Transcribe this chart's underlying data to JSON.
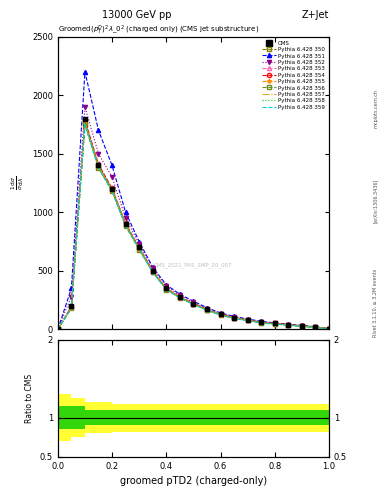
{
  "title_top": "13000 GeV pp",
  "title_right": "Z+Jet",
  "xlabel": "groomed pTD2 (charged-only)",
  "watermark": "CMS_2021_PAS_SMP_20_007",
  "right_label": "Rivet 3.1.10, ≥ 3.2M events",
  "arxiv_label": "[arXiv:1306.3436]",
  "mcplots_label": "mcplots.cern.ch",
  "xlim": [
    0.0,
    1.0
  ],
  "ylim_main": [
    0,
    2500
  ],
  "ylim_ratio": [
    0.5,
    2.0
  ],
  "x_data": [
    0.0,
    0.05,
    0.1,
    0.15,
    0.2,
    0.25,
    0.3,
    0.35,
    0.4,
    0.45,
    0.5,
    0.55,
    0.6,
    0.65,
    0.7,
    0.75,
    0.8,
    0.85,
    0.9,
    0.95,
    1.0
  ],
  "cms_data": [
    0,
    200,
    1800,
    1400,
    1200,
    900,
    700,
    500,
    350,
    280,
    220,
    170,
    130,
    100,
    80,
    60,
    50,
    40,
    30,
    20,
    5
  ],
  "series": [
    {
      "label": "Pythia 6.428 350",
      "color": "#808000",
      "linestyle": "--",
      "marker": "s",
      "markerfill": "none",
      "y": [
        0,
        180,
        1750,
        1380,
        1180,
        880,
        680,
        490,
        340,
        270,
        215,
        165,
        125,
        95,
        78,
        58,
        48,
        38,
        28,
        18,
        4
      ]
    },
    {
      "label": "Pythia 6.428 351",
      "color": "#0000FF",
      "linestyle": "--",
      "marker": "^",
      "markerfill": "full",
      "y": [
        0,
        350,
        2200,
        1700,
        1400,
        1000,
        750,
        530,
        380,
        300,
        240,
        185,
        140,
        110,
        88,
        68,
        55,
        44,
        33,
        22,
        6
      ]
    },
    {
      "label": "Pythia 6.428 352",
      "color": "#8B008B",
      "linestyle": ":",
      "marker": "v",
      "markerfill": "full",
      "y": [
        0,
        280,
        1900,
        1500,
        1300,
        950,
        730,
        520,
        370,
        290,
        230,
        175,
        133,
        102,
        82,
        62,
        52,
        41,
        31,
        21,
        5
      ]
    },
    {
      "label": "Pythia 6.428 353",
      "color": "#FF69B4",
      "linestyle": "--",
      "marker": "^",
      "markerfill": "none",
      "y": [
        0,
        190,
        1780,
        1400,
        1200,
        900,
        695,
        495,
        348,
        275,
        218,
        168,
        128,
        98,
        79,
        59,
        49,
        39,
        29,
        19,
        4
      ]
    },
    {
      "label": "Pythia 6.428 354",
      "color": "#FF0000",
      "linestyle": "--",
      "marker": "o",
      "markerfill": "none",
      "y": [
        0,
        195,
        1790,
        1410,
        1205,
        905,
        700,
        498,
        350,
        278,
        220,
        170,
        130,
        100,
        80,
        60,
        50,
        40,
        30,
        20,
        5
      ]
    },
    {
      "label": "Pythia 6.428 355",
      "color": "#FF8C00",
      "linestyle": "--",
      "marker": "*",
      "markerfill": "full",
      "y": [
        0,
        185,
        1760,
        1390,
        1190,
        895,
        690,
        492,
        345,
        272,
        216,
        166,
        126,
        96,
        77,
        57,
        47,
        37,
        27,
        17,
        4
      ]
    },
    {
      "label": "Pythia 6.428 356",
      "color": "#6B8E23",
      "linestyle": "--",
      "marker": "s",
      "markerfill": "none",
      "y": [
        0,
        188,
        1770,
        1395,
        1195,
        897,
        692,
        493,
        346,
        273,
        217,
        167,
        127,
        97,
        78,
        58,
        48,
        38,
        28,
        18,
        4
      ]
    },
    {
      "label": "Pythia 6.428 357",
      "color": "#DAA520",
      "linestyle": "-.",
      "marker": "none",
      "markerfill": "none",
      "y": [
        0,
        183,
        1755,
        1385,
        1185,
        892,
        688,
        490,
        343,
        270,
        214,
        164,
        124,
        94,
        76,
        56,
        46,
        36,
        26,
        16,
        4
      ]
    },
    {
      "label": "Pythia 6.428 358",
      "color": "#00CC00",
      "linestyle": ":",
      "marker": "none",
      "markerfill": "none",
      "y": [
        0,
        182,
        1752,
        1382,
        1182,
        890,
        686,
        488,
        342,
        269,
        213,
        163,
        123,
        93,
        75,
        55,
        45,
        35,
        25,
        15,
        4
      ]
    },
    {
      "label": "Pythia 6.428 359",
      "color": "#00CED1",
      "linestyle": "--",
      "marker": "none",
      "markerfill": "none",
      "y": [
        0,
        181,
        1748,
        1380,
        1180,
        888,
        684,
        486,
        340,
        268,
        212,
        162,
        122,
        92,
        74,
        54,
        44,
        34,
        24,
        14,
        4
      ]
    }
  ],
  "ratio_x": [
    0.0,
    0.05,
    0.1,
    0.2,
    0.3,
    0.4,
    0.5,
    0.6,
    0.7,
    0.8,
    0.9,
    1.0
  ],
  "ratio_yellow_upper": [
    1.3,
    1.25,
    1.2,
    1.18,
    1.18,
    1.18,
    1.18,
    1.18,
    1.18,
    1.18,
    1.18,
    1.18
  ],
  "ratio_yellow_lower": [
    0.7,
    0.75,
    0.8,
    0.82,
    0.82,
    0.82,
    0.82,
    0.82,
    0.82,
    0.82,
    0.82,
    0.82
  ],
  "ratio_green_upper": [
    1.15,
    1.15,
    1.1,
    1.1,
    1.1,
    1.1,
    1.1,
    1.1,
    1.1,
    1.1,
    1.1,
    1.1
  ],
  "ratio_green_lower": [
    0.85,
    0.85,
    0.9,
    0.9,
    0.9,
    0.9,
    0.9,
    0.9,
    0.9,
    0.9,
    0.9,
    0.9
  ]
}
